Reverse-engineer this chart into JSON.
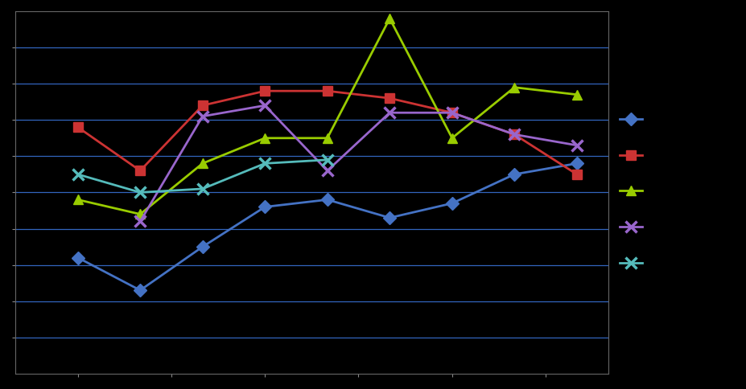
{
  "background_color": "#000000",
  "plot_bg_color": "#000000",
  "grid_color": "#4488ff",
  "figsize": [
    9.28,
    4.85
  ],
  "dpi": 100,
  "xlim": [
    1.0,
    10.5
  ],
  "ylim": [
    0.0,
    10.0
  ],
  "ytick_positions": [
    1.0,
    2.0,
    3.0,
    4.0,
    5.0,
    6.0,
    7.0,
    8.0,
    9.0
  ],
  "xtick_positions": [
    2.0,
    3.5,
    5.0,
    6.5,
    8.0,
    9.5
  ],
  "blue_x": [
    2,
    3,
    4,
    5,
    6,
    7,
    8,
    9,
    10
  ],
  "blue_y": [
    3.2,
    2.3,
    3.5,
    4.6,
    4.8,
    4.3,
    4.7,
    5.5,
    5.8
  ],
  "red_x": [
    2,
    3,
    4,
    5,
    6,
    7,
    8,
    9,
    10
  ],
  "red_y": [
    6.8,
    5.6,
    7.4,
    7.8,
    7.8,
    7.6,
    7.2,
    6.6,
    5.5
  ],
  "green_x": [
    2,
    3,
    4,
    5,
    6,
    7,
    8,
    9,
    10
  ],
  "green_y": [
    4.8,
    4.4,
    5.8,
    6.5,
    6.5,
    9.8,
    6.5,
    7.9,
    7.7
  ],
  "purple_x": [
    3,
    4,
    5,
    6,
    7,
    8,
    9,
    10
  ],
  "purple_y": [
    4.2,
    7.1,
    7.4,
    5.6,
    7.2,
    7.2,
    6.6,
    6.3
  ],
  "cyan_x": [
    2,
    3,
    4,
    5,
    6
  ],
  "cyan_y": [
    5.5,
    5.0,
    5.1,
    5.8,
    5.9
  ],
  "blue_color": "#4472C4",
  "red_color": "#CC3333",
  "green_color": "#99CC00",
  "purple_color": "#9966CC",
  "cyan_color": "#55BBBB"
}
